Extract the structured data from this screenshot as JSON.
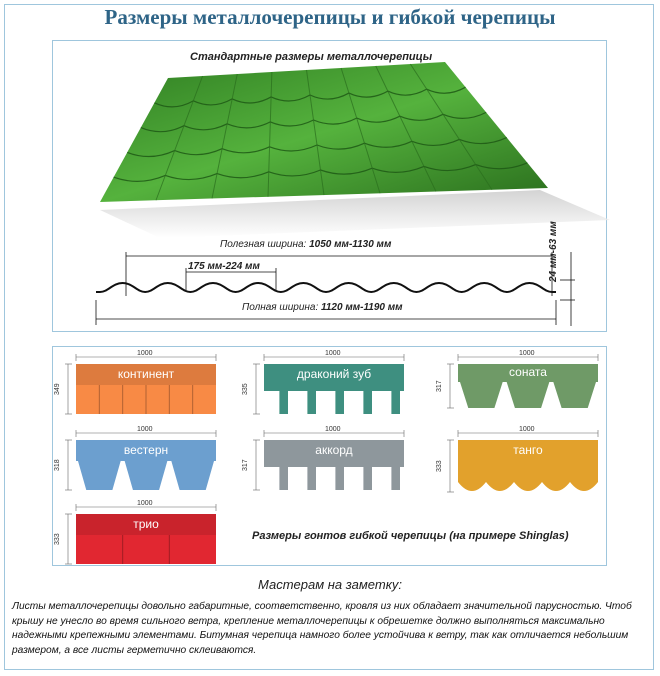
{
  "title": "Размеры металлочерепицы и гибкой черепицы",
  "metal": {
    "subtitle": "Стандартные размеры металлочерепицы",
    "color": "#3f9a2c",
    "useful_width_label": "Полезная ширина:",
    "useful_width_value": "1050 мм-1130 мм",
    "step_value": "175 мм-224 мм",
    "full_width_label": "Полная ширина:",
    "full_width_value": "1120 мм-1190 мм",
    "height_value": "24 мм-63 мм"
  },
  "shingles": {
    "caption": "Размеры гонтов гибкой черепицы (на примере Shinglas)",
    "items": [
      {
        "name": "континент",
        "width": "1000",
        "height": "349",
        "color": "#dd7b3e"
      },
      {
        "name": "драконий зуб",
        "width": "1000",
        "height": "335",
        "color": "#3e8f80"
      },
      {
        "name": "соната",
        "width": "1000",
        "height": "317",
        "color": "#6f9a67"
      },
      {
        "name": "вестерн",
        "width": "1000",
        "height": "318",
        "color": "#6c9fcf"
      },
      {
        "name": "аккорд",
        "width": "1000",
        "height": "317",
        "color": "#8e979c"
      },
      {
        "name": "танго",
        "width": "1000",
        "height": "333",
        "color": "#e2a12c"
      },
      {
        "name": "трио",
        "width": "1000",
        "height": "333",
        "color": "#c9232c"
      }
    ]
  },
  "note": {
    "heading": "Мастерам на заметку:",
    "text": "Листы металлочерепицы довольно габаритные, соответственно, кровля из них обладает значительной парусностью. Чтоб крышу не унесло во время сильного ветра, крепление металлочерепицы к обрешетке должно выполняться максимально надежными крепежными элементами. Битумная черепица намного более устойчива к ветру, так как отличается небольшим размером, а все листы герметично склеиваются."
  }
}
